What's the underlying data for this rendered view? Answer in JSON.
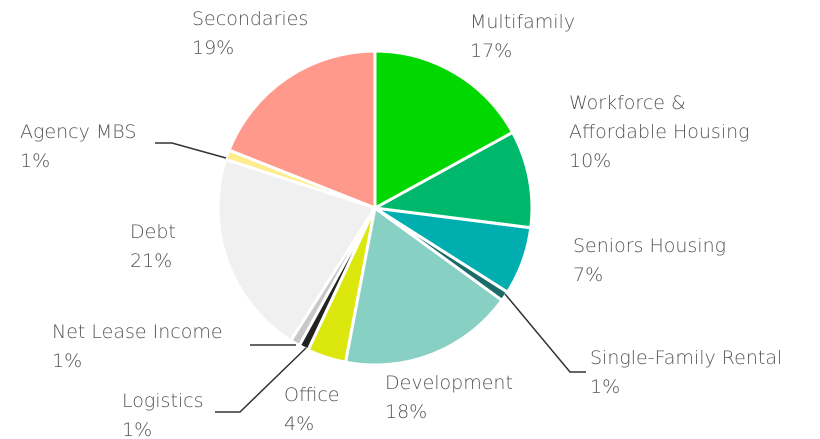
{
  "chart_data": {
    "type": "pie",
    "categories": [
      "Multifamily",
      "Workforce & Affordable Housing",
      "Seniors Housing",
      "Single-Family Rental",
      "Development",
      "Office",
      "Logistics",
      "Net Lease Income",
      "Debt",
      "Agency MBS",
      "Secondaries"
    ],
    "values": [
      17,
      10,
      7,
      1,
      18,
      4,
      1,
      1,
      21,
      1,
      19
    ],
    "value_labels": [
      "17%",
      "10%",
      "7%",
      "1%",
      "18%",
      "4%",
      "1%",
      "1%",
      "21%",
      "1%",
      "19%"
    ],
    "colors": [
      "#00d800",
      "#00b86b",
      "#00adaf",
      "#1b6b6b",
      "#88d0c4",
      "#dbe70d",
      "#222222",
      "#c8c8c8",
      "#f0f0f0",
      "#ffec8c",
      "#ff998c"
    ]
  }
}
